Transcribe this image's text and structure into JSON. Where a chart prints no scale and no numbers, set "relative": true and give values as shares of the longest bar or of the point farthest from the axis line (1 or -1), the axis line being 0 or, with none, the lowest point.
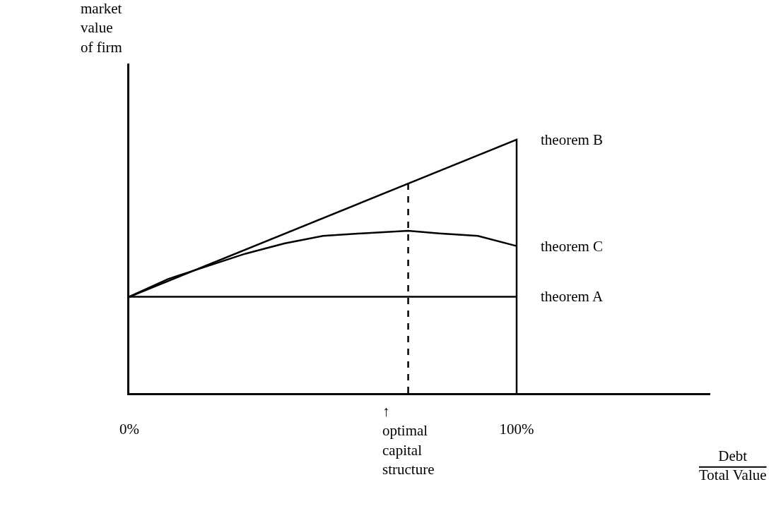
{
  "chart_data": {
    "type": "line",
    "relative": true,
    "xlabel": "Debt\nTotal Value",
    "xlim": [
      0,
      150
    ],
    "xticks": [
      {
        "value": 0,
        "label": "0%"
      },
      {
        "value": 100,
        "label": "100%"
      }
    ],
    "grid": false,
    "legend": false,
    "marker": "none",
    "tick_labels": "x",
    "series": [
      {
        "name": "theorem B",
        "color": "#000000",
        "x": [
          0,
          100,
          100
        ],
        "values": [
          0.38,
          1,
          0
        ]
      },
      {
        "name": "theorem C",
        "color": "#000000",
        "x": [
          0,
          10,
          20,
          30,
          40,
          50,
          60,
          72,
          80,
          90,
          100
        ],
        "values": [
          0.38,
          0.45,
          0.5,
          0.55,
          0.59,
          0.62,
          0.63,
          0.64,
          0.63,
          0.62,
          0.58
        ]
      },
      {
        "name": "theorem A",
        "color": "#000000",
        "x": [
          0,
          100
        ],
        "values": [
          0.38,
          0.38
        ]
      },
      {
        "color": "#000000",
        "line_style": "dashed",
        "x": [
          72,
          72
        ],
        "values": [
          0,
          0.83
        ]
      }
    ],
    "annotations": [
      "market value of firm",
      {
        "text": "↑\noptimal\ncapital\nstructure",
        "x": 72,
        "y": 0
      }
    ]
  }
}
